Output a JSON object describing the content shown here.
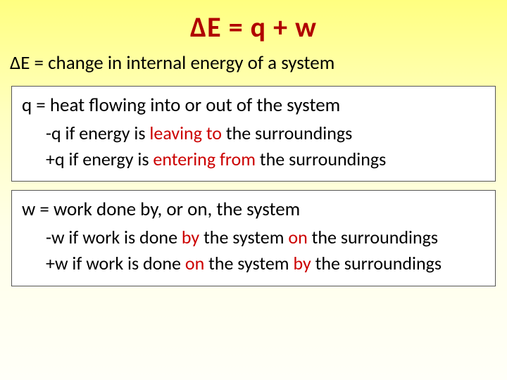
{
  "colors": {
    "title_color": "#b00000",
    "accent_red": "#cc0000",
    "body_text": "#000000",
    "box_border": "#555555",
    "box_bg": "#ffffff",
    "bg_gradient_top": "#ffff80",
    "bg_gradient_bottom": "#fffff8"
  },
  "fontsize": {
    "title": 40,
    "lead": 27,
    "sub": 26
  },
  "title": {
    "delta": "Δ",
    "rest": "E = q + w"
  },
  "de_line": {
    "delta": "Δ",
    "rest": "E = change in internal energy of a system"
  },
  "q_box": {
    "lead": "q = heat flowing into or out of the system",
    "neg": {
      "pre": "-q if energy is ",
      "red": "leaving to",
      "post": " the surroundings"
    },
    "pos": {
      "pre": "+q if energy is ",
      "red": "entering from",
      "post": " the surroundings"
    }
  },
  "w_box": {
    "lead": "w = work done by, or on, the system",
    "neg": {
      "pre": "-w if work is done ",
      "red1": "by",
      "mid": " the system ",
      "red2": "on",
      "post": " the surroundings"
    },
    "pos": {
      "pre": "+w if work is done ",
      "red1": "on",
      "mid": " the system ",
      "red2": "by",
      "post": " the surroundings"
    }
  }
}
